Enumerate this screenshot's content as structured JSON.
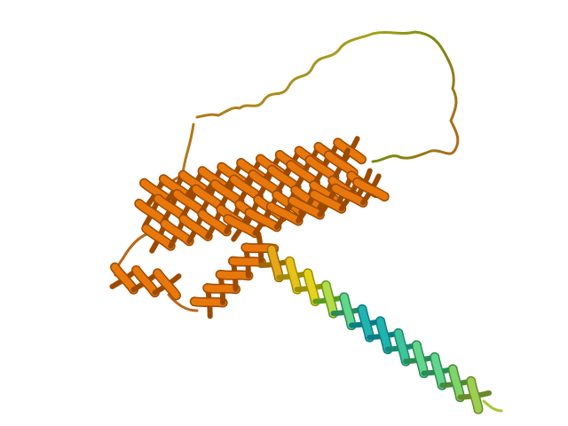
{
  "scene": {
    "subject": "protein-cartoon-ribbon",
    "background": "#ffffff",
    "palette": {
      "bundle_orange": "#e8780c",
      "bundle_orange_dark": "#9c4a00",
      "bundle_orange_light": "#f7a24a",
      "loop_brown": "#b8661a",
      "loop_olive": "#a6a21c",
      "transition_yellow": "#e6d21a",
      "helix_green": "#62d68a",
      "helix_cyan": "#1fb4b0",
      "helix_teal_dark": "#0a7c86"
    }
  }
}
